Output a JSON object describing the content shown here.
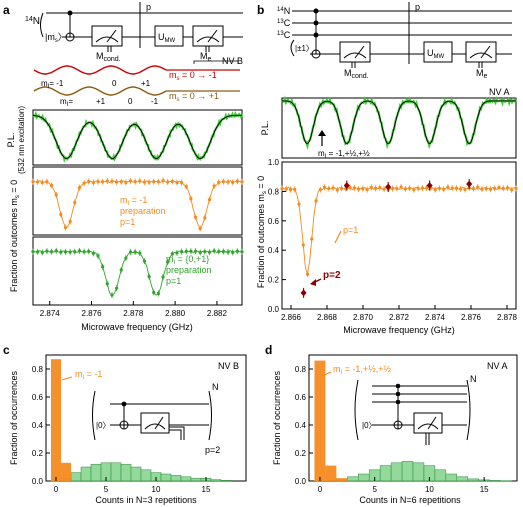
{
  "panel_labels": {
    "a": "a",
    "b": "b",
    "c": "c",
    "d": "d"
  },
  "colors": {
    "red": "#cc0000",
    "brown": "#8b5a10",
    "green": "#43c83a",
    "green_fill": "#7fd28a",
    "orange": "#f58a1f",
    "darkred": "#8b0000",
    "black": "#000000",
    "gray": "#777777"
  },
  "panel_a": {
    "circuit": {
      "n14": "14N",
      "n14_sup": "14",
      "n14_sym": "N",
      "ket": "|m",
      "ket_sub": "s",
      "ket_end": "〉",
      "p": "p",
      "umw": "U",
      "umw_sub": "MW",
      "mcond": "M",
      "mcond_sub": "cond.",
      "me": "M",
      "me_sub": "e"
    },
    "nv_label": "NV B",
    "levels": {
      "top_ml": "m",
      "top_ml_sub": "I",
      "top_vals": [
        "= -1",
        "0",
        "+1"
      ],
      "ms_red": "m",
      "ms_red_sub": "s",
      "ms_red_txt": " = 0 → -1",
      "bottom_ml": "m",
      "bottom_ml_sub": "I",
      "bottom_vals": [
        "= ",
        "+1",
        "0",
        "-1"
      ],
      "ms_brown": "m",
      "ms_brown_sub": "s",
      "ms_brown_txt": " = 0 → +1"
    },
    "pl_ylabel": "P.L.",
    "pl_ylabel2": "(532 nm excitation)",
    "frac_ylabel": "Fraction of outcomes m",
    "frac_ylabel_sub": "s",
    "frac_ylabel_end": " = 0",
    "orange_text": {
      "line1a": "m",
      "line1sub": "I",
      "line1b": " = -1",
      "line2": "preparation",
      "line3": "p=1"
    },
    "green_text": {
      "line1a": "m",
      "line1sub": "I",
      "line1b": " = {0,+1}",
      "line2": "preparation",
      "line3": "p=1"
    },
    "xlabel": "Microwave frequency (GHz)",
    "xticks": [
      "2.874",
      "2.876",
      "2.878",
      "2.880",
      "2.882"
    ]
  },
  "panel_b": {
    "circuit": {
      "n14": "14N",
      "n14_sup": "14",
      "n14_sym": "N",
      "c13a_sup": "13",
      "c13a_sym": "C",
      "c13b_sup": "13",
      "c13b_sym": "C",
      "ket": "|±1〉",
      "p": "p",
      "umw": "U",
      "umw_sub": "MW",
      "mcond": "M",
      "mcond_sub": "cond.",
      "me": "M",
      "me_sub": "e"
    },
    "nv_label": "NV A",
    "pl_ylabel": "P.L.",
    "pl_annotation": "m",
    "pl_annotation_sub": "I",
    "pl_annotation_end": " = -1,+½,+½",
    "frac_ylabel": "Fraction of outcomes m",
    "frac_ylabel_sub": "s",
    "frac_ylabel_end": " = 0",
    "yticks": [
      "0.0",
      "0.2",
      "0.4",
      "0.6",
      "0.8",
      "1.0"
    ],
    "p1_label": "p=1",
    "p2_label": "p=2",
    "xlabel": "Microwave frequency (GHz)",
    "xticks": [
      "2.866",
      "2.868",
      "2.870",
      "2.872",
      "2.874",
      "2.876",
      "2.878"
    ]
  },
  "panel_c": {
    "nv_label": "NV B",
    "ylabel": "Fraction of occurrences",
    "xlabel": "Counts in N=3 repetitions",
    "yticks": [
      "0.0",
      "0.2",
      "0.4",
      "0.6",
      "0.8"
    ],
    "xticks": [
      "0",
      "5",
      "10",
      "15"
    ],
    "orange_label": "m",
    "orange_label_sub": "I",
    "orange_label_end": " = -1",
    "p2_label": "p=2",
    "inset": {
      "ket": "|0〉",
      "n": "N"
    }
  },
  "panel_d": {
    "nv_label": "NV A",
    "ylabel": "Fraction of occurrences",
    "xlabel": "Counts in N=6 repetitions",
    "yticks": [
      "0.0",
      "0.2",
      "0.4",
      "0.6",
      "0.8"
    ],
    "xticks": [
      "0",
      "5",
      "10",
      "15"
    ],
    "orange_label": "m",
    "orange_label_sub": "I",
    "orange_label_end": " = -1,+½,+½",
    "inset": {
      "ket": "|0〉",
      "n": "N"
    }
  },
  "chart_data": [
    {
      "type": "line",
      "panel": "a-PL",
      "xlabel": "Microwave frequency (GHz)",
      "ylabel": "P.L. (532 nm excitation)",
      "xlim": [
        2.8732,
        2.8832
      ],
      "ylim": [
        0.62,
        1.04
      ],
      "dips": [
        2.8748,
        2.877,
        2.8791,
        2.8812
      ],
      "dip_depth": 0.33,
      "dip_width": 0.0007
    },
    {
      "type": "line",
      "panel": "a-orange",
      "xlabel": "Microwave frequency (GHz)",
      "ylabel": "Fraction of outcomes ms = 0",
      "xlim": [
        2.8732,
        2.8832
      ],
      "ylim": [
        0.15,
        0.8
      ],
      "base": 0.66,
      "dips": [
        2.8748,
        2.8812
      ],
      "dip_depth": 0.44,
      "dip_width": 0.00045
    },
    {
      "type": "line",
      "panel": "a-green",
      "xlabel": "Microwave frequency (GHz)",
      "ylabel": "Fraction of outcomes ms = 0",
      "xlim": [
        2.8732,
        2.8832
      ],
      "ylim": [
        0.15,
        0.8
      ],
      "base": 0.66,
      "dips": [
        2.877,
        2.8791
      ],
      "dip_depth": 0.42,
      "dip_width": 0.00045
    },
    {
      "type": "line",
      "panel": "b-PL",
      "xlabel": "Microwave frequency (GHz)",
      "ylabel": "P.L.",
      "xlim": [
        2.8655,
        2.8785
      ],
      "ylim": [
        0.6,
        1.02
      ],
      "dips": [
        2.8669,
        2.8691,
        2.8714,
        2.8737,
        2.8759
      ],
      "dip_depth": 0.3,
      "dip_width": 0.00048
    },
    {
      "type": "line",
      "panel": "b-fraction",
      "xlabel": "Microwave frequency (GHz)",
      "ylabel": "Fraction of outcomes ms = 0",
      "xlim": [
        2.8655,
        2.8785
      ],
      "ylim": [
        0.0,
        1.0
      ],
      "base": 0.82,
      "dips": [
        2.8669
      ],
      "dip_depth": 0.58,
      "dip_width": 0.00035,
      "p2_points": [
        [
          2.8667,
          0.11
        ],
        [
          2.8691,
          0.84
        ],
        [
          2.8714,
          0.83
        ],
        [
          2.8737,
          0.84
        ],
        [
          2.8759,
          0.85
        ]
      ]
    },
    {
      "type": "bar",
      "panel": "c",
      "xlabel": "Counts in N=3 repetitions",
      "ylabel": "Fraction of occurrences",
      "xlim": [
        -1,
        19
      ],
      "ylim": [
        0,
        0.9
      ],
      "orange": [
        0.87,
        0.13
      ],
      "green_x": [
        0,
        1,
        2,
        3,
        4,
        5,
        6,
        7,
        8,
        9,
        10,
        11,
        12,
        13,
        14,
        15,
        16,
        17
      ],
      "green": [
        0.002,
        0.02,
        0.06,
        0.1,
        0.12,
        0.13,
        0.13,
        0.12,
        0.1,
        0.08,
        0.06,
        0.05,
        0.04,
        0.03,
        0.02,
        0.02,
        0.01,
        0.005
      ]
    },
    {
      "type": "bar",
      "panel": "d",
      "xlabel": "Counts in N=6 repetitions",
      "ylabel": "Fraction of occurrences",
      "xlim": [
        -1,
        18
      ],
      "ylim": [
        0,
        0.9
      ],
      "orange": [
        0.86,
        0.11,
        0.02
      ],
      "green_x": [
        0,
        1,
        2,
        3,
        4,
        5,
        6,
        7,
        8,
        9,
        10,
        11,
        12,
        13,
        14,
        15,
        16,
        17
      ],
      "green": [
        0.002,
        0.006,
        0.015,
        0.03,
        0.05,
        0.08,
        0.11,
        0.13,
        0.14,
        0.13,
        0.11,
        0.08,
        0.05,
        0.03,
        0.015,
        0.008,
        0.004,
        0.002
      ]
    }
  ]
}
